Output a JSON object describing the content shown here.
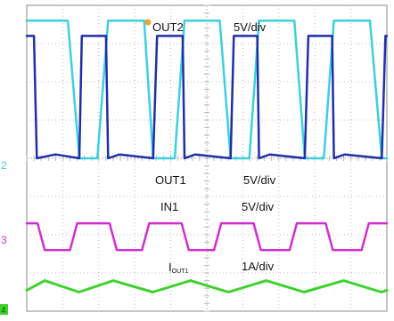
{
  "chart_data": {
    "type": "line",
    "x_divisions": 10,
    "y_divisions": 8,
    "grid": true,
    "colors": {
      "out2": "#3ecfe0",
      "out1": "#1f2fa8",
      "in1": "#d12fd1",
      "iout1": "#3fd22f",
      "grid": "#b9b9b9",
      "frame": "#8a8a8a"
    },
    "channels": [
      {
        "id": "out2",
        "name": "OUT2",
        "scale": "5V/div",
        "color": "#3ecfe0"
      },
      {
        "id": "out1",
        "name": "OUT1",
        "scale": "5V/div",
        "color": "#1f2fa8"
      },
      {
        "id": "in1",
        "name": "IN1",
        "scale": "5V/div",
        "color": "#d12fd1"
      },
      {
        "id": "iout1",
        "name": "I",
        "name_sub": "OUT1",
        "scale": "1A/div",
        "color": "#3fd22f"
      }
    ],
    "markers": [
      {
        "id": "ch2",
        "text": "2",
        "color": "#3ecfe0"
      },
      {
        "id": "ch3",
        "text": "3",
        "color": "#d12fd1"
      },
      {
        "id": "ch4",
        "text": "4",
        "color": "#3fd22f"
      }
    ],
    "series": [
      {
        "id": "out2",
        "units": "div",
        "x": [
          0,
          0.16,
          1.14,
          1.46,
          1.96,
          2.26,
          3.26,
          3.51,
          4.11,
          4.38,
          5.36,
          5.66,
          6.18,
          6.45,
          7.43,
          7.72,
          8.25,
          8.53,
          9.53,
          9.86,
          10
        ],
        "y": [
          7.6,
          7.6,
          7.6,
          4.0,
          4.0,
          7.6,
          7.6,
          4.0,
          4.0,
          7.6,
          7.6,
          4.0,
          4.0,
          7.6,
          7.6,
          4.0,
          4.0,
          7.6,
          7.6,
          4.0,
          4.0
        ]
      },
      {
        "id": "out1",
        "units": "div",
        "x": [
          0,
          0.2,
          0.28,
          0.8,
          1.46,
          1.53,
          2.2,
          2.26,
          2.58,
          3.51,
          3.62,
          4.33,
          4.38,
          4.68,
          5.66,
          5.75,
          6.4,
          6.45,
          6.75,
          7.72,
          7.82,
          8.48,
          8.53,
          8.83,
          9.86,
          9.96,
          10
        ],
        "y": [
          7.2,
          7.2,
          4.0,
          4.1,
          4.0,
          7.2,
          7.2,
          4.0,
          4.1,
          4.0,
          7.2,
          7.2,
          4.0,
          4.1,
          4.0,
          7.2,
          7.2,
          4.0,
          4.1,
          4.0,
          7.2,
          7.2,
          4.0,
          4.1,
          4.0,
          7.2,
          7.2
        ]
      },
      {
        "id": "in1",
        "units": "div",
        "x": [
          0,
          0.3,
          0.5,
          1.2,
          1.4,
          2.3,
          2.5,
          3.2,
          3.4,
          4.3,
          4.5,
          5.2,
          5.4,
          6.3,
          6.5,
          7.3,
          7.5,
          8.3,
          8.5,
          9.3,
          9.5,
          10
        ],
        "y": [
          2.3,
          2.3,
          1.6,
          1.6,
          2.3,
          2.3,
          1.6,
          1.6,
          2.3,
          2.3,
          1.6,
          1.6,
          2.3,
          2.3,
          1.6,
          1.6,
          2.3,
          2.3,
          1.6,
          1.6,
          2.3,
          2.3
        ]
      },
      {
        "id": "iout1",
        "units": "div",
        "x": [
          0,
          0.5,
          1.45,
          2.4,
          3.5,
          4.55,
          5.6,
          6.65,
          7.7,
          8.8,
          9.85,
          10
        ],
        "y": [
          0.55,
          0.8,
          0.5,
          0.8,
          0.5,
          0.8,
          0.5,
          0.8,
          0.5,
          0.8,
          0.5,
          0.55
        ]
      }
    ]
  }
}
